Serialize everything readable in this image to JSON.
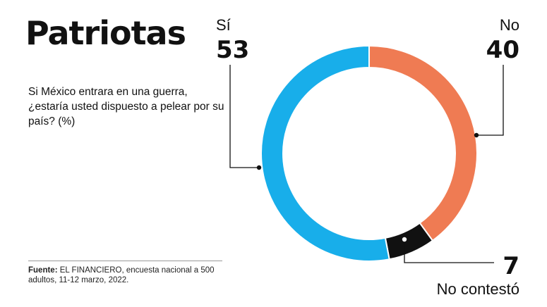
{
  "title": "Patriotas",
  "question": "Si México entrara en una guerra, ¿estaría usted dispuesto a pelear por su país? (%)",
  "source": {
    "label": "Fuente:",
    "text": " EL FINANCIERO, encuesta nacional a 500 adultos, 11-12 marzo, 2022."
  },
  "chart_data": {
    "type": "pie",
    "donut": true,
    "categories": [
      "Sí",
      "No",
      "No contestó"
    ],
    "values": [
      53,
      40,
      7
    ],
    "colors": [
      "#18AEEA",
      "#EF7B53",
      "#111111"
    ]
  }
}
